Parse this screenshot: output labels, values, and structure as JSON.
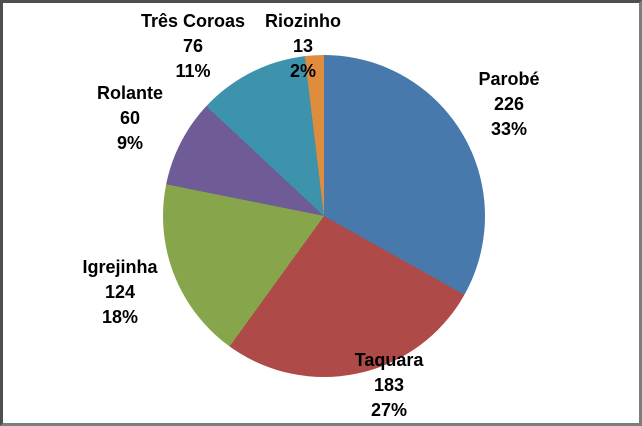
{
  "chart_data": {
    "type": "pie",
    "direction": "clockwise",
    "start_angle_deg": 0,
    "legend": "none",
    "grid": "off",
    "background": "#ffffff",
    "border_color": "#5a5a5a",
    "slices": [
      {
        "label": "Parobé",
        "value": 226,
        "pct": "33%",
        "color": "#4879AC"
      },
      {
        "label": "Taquara",
        "value": 183,
        "pct": "27%",
        "color": "#AE4A47"
      },
      {
        "label": "Igrejinha",
        "value": 124,
        "pct": "18%",
        "color": "#87A64C"
      },
      {
        "label": "Rolante",
        "value": 60,
        "pct": "9%",
        "color": "#6F5C97"
      },
      {
        "label": "Três Coroas",
        "value": 76,
        "pct": "11%",
        "color": "#3D93AC"
      },
      {
        "label": "Riozinho",
        "value": 13,
        "pct": "2%",
        "color": "#DF8C3E"
      }
    ]
  }
}
